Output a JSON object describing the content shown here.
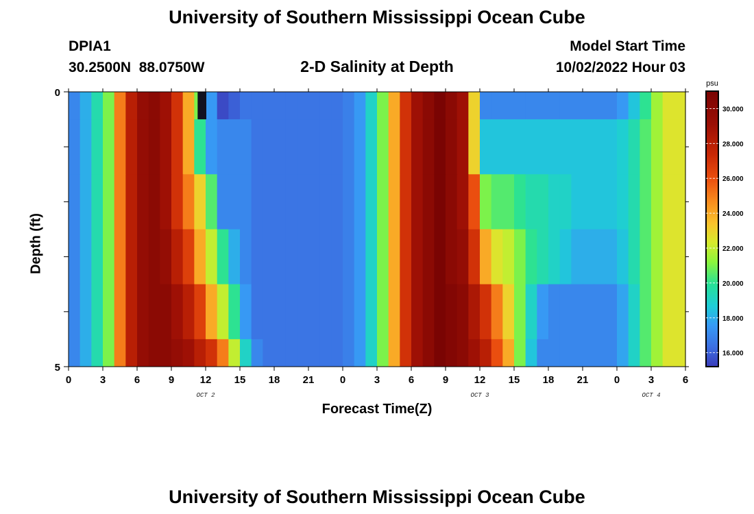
{
  "header": {
    "title": "University of Southern Mississippi Ocean Cube",
    "station_id": "DPIA1",
    "station_coords": "30.2500N  88.0750W",
    "subtitle": "2-D Salinity at Depth",
    "model_start_label": "Model Start Time",
    "model_start_value": "10/02/2022 Hour 03"
  },
  "footer": {
    "title": "University of Southern Mississippi Ocean Cube"
  },
  "chart_data": {
    "type": "heatmap",
    "xlabel": "Forecast Time(Z)",
    "ylabel": "Depth (ft)",
    "x_tick_labels": [
      "0",
      "3",
      "6",
      "9",
      "12",
      "15",
      "18",
      "21",
      "0",
      "3",
      "6",
      "9",
      "12",
      "15",
      "18",
      "21",
      "0",
      "3",
      "6"
    ],
    "x_date_labels": [
      {
        "label": "OCT 2",
        "at_hour": 12
      },
      {
        "label": "OCT 3",
        "at_hour": 36
      },
      {
        "label": "OCT 4",
        "at_hour": 51
      }
    ],
    "x_range_hours": [
      0,
      54
    ],
    "y_tick_labels": [
      "0",
      "5"
    ],
    "y_range": [
      0,
      5
    ],
    "colorbar": {
      "unit": "psu",
      "range": [
        15.2,
        31.0
      ],
      "tick_labels": [
        "16.000",
        "18.000",
        "20.000",
        "22.000",
        "24.000",
        "26.000",
        "28.000",
        "30.000"
      ],
      "tick_values": [
        16,
        18,
        20,
        22,
        24,
        26,
        28,
        30
      ]
    },
    "salinity_by_depth_band": {
      "hours": [
        0,
        1,
        2,
        3,
        4,
        5,
        6,
        7,
        8,
        9,
        10,
        11,
        12,
        13,
        14,
        15,
        16,
        17,
        18,
        19,
        20,
        21,
        22,
        23,
        24,
        25,
        26,
        27,
        28,
        29,
        30,
        31,
        32,
        33,
        34,
        35,
        36,
        37,
        38,
        39,
        40,
        41,
        42,
        43,
        44,
        45,
        46,
        47,
        48,
        49,
        50,
        51,
        52,
        53,
        54
      ],
      "bands": [
        {
          "depth": [
            0.0,
            0.5
          ],
          "values": [
            17,
            18,
            19.5,
            21,
            25,
            28,
            29.5,
            30,
            29,
            27,
            24,
            21,
            17.5,
            15.5,
            16,
            16.5,
            16.5,
            16.5,
            16.5,
            16.5,
            16.5,
            16.5,
            16.5,
            16.5,
            16.8,
            17.5,
            19,
            21,
            24,
            27,
            29,
            30,
            31,
            30,
            29,
            23,
            17,
            17,
            17,
            17,
            17,
            17,
            17,
            17,
            17,
            17,
            17,
            17,
            17.5,
            18.5,
            20,
            21.5,
            22.5,
            22.5,
            22.5
          ]
        },
        {
          "depth": [
            0.5,
            1.5
          ],
          "values": [
            17,
            18,
            19.5,
            21,
            25,
            28,
            29.5,
            30,
            29,
            27,
            24,
            20,
            17.5,
            17,
            17,
            17,
            16.5,
            16.5,
            16.5,
            16.5,
            16.5,
            16.5,
            16.5,
            16.5,
            16.8,
            17.5,
            19,
            21,
            24,
            27,
            29,
            30,
            31,
            30,
            29,
            23,
            18.5,
            18.5,
            18.5,
            18.5,
            18.5,
            18.5,
            18.5,
            18.5,
            18.5,
            18.5,
            18.5,
            18.5,
            18.8,
            19.5,
            20.5,
            21.5,
            22.5,
            22.5,
            22.5
          ]
        },
        {
          "depth": [
            1.5,
            2.5
          ],
          "values": [
            17,
            18,
            19.5,
            21,
            25,
            28,
            29.5,
            30,
            29,
            27,
            25,
            23,
            20.5,
            17,
            17,
            17,
            16.5,
            16.5,
            16.5,
            16.5,
            16.5,
            16.5,
            16.5,
            16.5,
            16.8,
            17.5,
            19,
            21,
            24,
            27,
            29,
            30,
            31,
            30,
            29,
            26,
            21,
            20.5,
            20.5,
            20,
            19.5,
            19.5,
            19,
            19,
            18.5,
            18.5,
            18.5,
            18.5,
            18.8,
            19.5,
            20.5,
            21.5,
            22.5,
            22.5,
            22.5
          ]
        },
        {
          "depth": [
            2.5,
            3.5
          ],
          "values": [
            17,
            18,
            19.5,
            21,
            25,
            28,
            29.5,
            30,
            29.5,
            28,
            26.5,
            24,
            22,
            20,
            18,
            17,
            16.5,
            16.5,
            16.5,
            16.5,
            16.5,
            16.5,
            16.5,
            16.5,
            16.8,
            17.5,
            19,
            21,
            24,
            27,
            29,
            30,
            31,
            30,
            29.5,
            27,
            24,
            22.5,
            22,
            21,
            20,
            19.5,
            19,
            18.5,
            18,
            18,
            18,
            18,
            18.5,
            19.5,
            20.5,
            21.5,
            22.5,
            22.5,
            22.5
          ]
        },
        {
          "depth": [
            3.5,
            4.5
          ],
          "values": [
            17,
            18,
            19.5,
            21,
            25,
            28,
            29.5,
            30,
            30,
            29,
            28,
            26.5,
            24,
            22,
            20,
            17.5,
            16.5,
            16.5,
            16.5,
            16.5,
            16.5,
            16.5,
            16.5,
            16.5,
            16.8,
            17.5,
            19,
            21,
            24,
            27,
            29,
            30,
            31,
            30.5,
            30,
            28.5,
            27,
            25,
            23,
            21,
            19,
            17.5,
            17,
            17,
            17,
            17,
            17,
            17,
            17.8,
            19,
            20.5,
            21.5,
            22.5,
            22.5,
            22.5
          ]
        },
        {
          "depth": [
            4.5,
            5.0
          ],
          "values": [
            17,
            18,
            19.5,
            21,
            25,
            28,
            29.5,
            30,
            30,
            29.5,
            29,
            28,
            27,
            25,
            22,
            19,
            17,
            16.5,
            16.5,
            16.5,
            16.5,
            16.5,
            16.5,
            16.5,
            16.8,
            17.5,
            19,
            21,
            24,
            27,
            29,
            30,
            31,
            30.5,
            30,
            29,
            28,
            26,
            24,
            21,
            18.5,
            17,
            17,
            17,
            17,
            17,
            17,
            17,
            17.8,
            19,
            20.5,
            21.5,
            22.5,
            22.5,
            22.5
          ]
        }
      ],
      "low_spot": {
        "hours": [
          11,
          12
        ],
        "depth": [
          0.0,
          0.5
        ],
        "value": 14
      }
    }
  }
}
